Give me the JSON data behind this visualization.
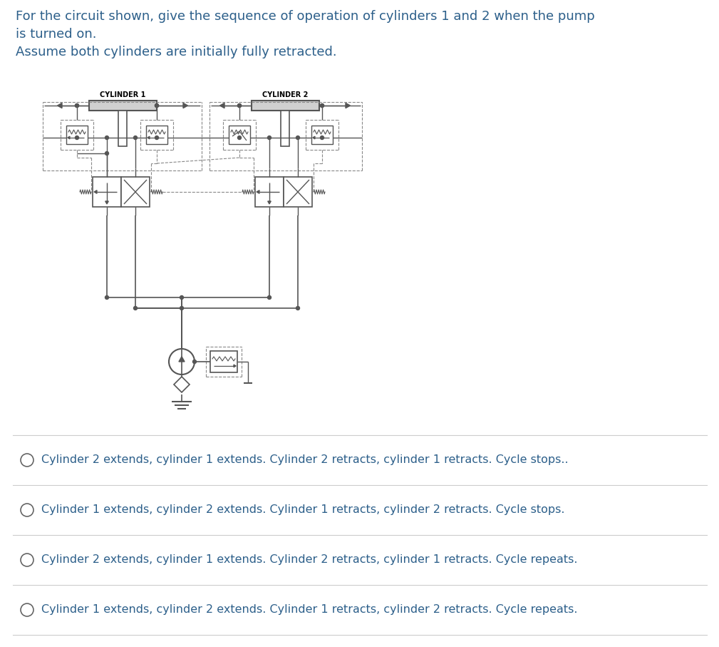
{
  "title_line1": "For the circuit shown, give the sequence of operation of cylinders 1 and 2 when the pump",
  "title_line2": "is turned on.",
  "title_line3": "Assume both cylinders are initially fully retracted.",
  "text_color": "#2c5f8a",
  "bg_color": "#ffffff",
  "options": [
    "Cylinder 2 extends, cylinder 1 extends. Cylinder 2 retracts, cylinder 1 retracts. Cycle stops..",
    "Cylinder 1 extends, cylinder 2 extends. Cylinder 1 retracts, cylinder 2 retracts. Cycle stops.",
    "Cylinder 2 extends, cylinder 1 extends. Cylinder 2 retracts, cylinder 1 retracts. Cycle repeats.",
    "Cylinder 1 extends, cylinder 2 extends. Cylinder 1 retracts, cylinder 2 retracts. Cycle repeats."
  ],
  "cylinder1_label": "CYLINDER 1",
  "cylinder2_label": "CYLINDER 2",
  "diagram_color": "#555555",
  "dashed_color": "#888888",
  "font_size_title": 13,
  "font_size_options": 11.5,
  "font_size_label": 7
}
